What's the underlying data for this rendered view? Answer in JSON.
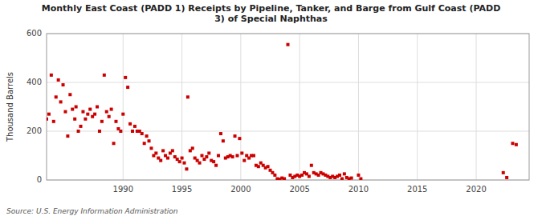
{
  "chart_data": {
    "type": "scatter",
    "title": "Monthly East Coast (PADD 1) Receipts by Pipeline, Tanker, and Barge from Gulf Coast (PADD\n3) of Special Naphthas",
    "y_label": "Thousand Barrels",
    "source": "Source: U.S. Energy Information Administration",
    "color": "#cc0000",
    "marker": "square",
    "grid": true,
    "xlim": [
      1983.5,
      2024.5
    ],
    "ylim": [
      0,
      600
    ],
    "xticks": [
      1990,
      1995,
      2000,
      2005,
      2010,
      2015,
      2020
    ],
    "yticks": [
      0,
      200,
      400,
      600
    ],
    "x": [
      1983.5,
      1983.7,
      1983.9,
      1984.1,
      1984.3,
      1984.5,
      1984.7,
      1984.9,
      1985.1,
      1985.3,
      1985.5,
      1985.7,
      1985.9,
      1986.0,
      1986.2,
      1986.4,
      1986.6,
      1986.8,
      1987.0,
      1987.2,
      1987.4,
      1987.6,
      1987.8,
      1988.0,
      1988.2,
      1988.4,
      1988.6,
      1988.8,
      1989.0,
      1989.2,
      1989.4,
      1989.6,
      1989.8,
      1990.0,
      1990.2,
      1990.4,
      1990.6,
      1990.8,
      1991.0,
      1991.2,
      1991.4,
      1991.6,
      1991.8,
      1992.0,
      1992.2,
      1992.4,
      1992.6,
      1992.8,
      1993.0,
      1993.2,
      1993.4,
      1993.6,
      1993.8,
      1994.0,
      1994.2,
      1994.4,
      1994.6,
      1994.8,
      1995.0,
      1995.2,
      1995.4,
      1995.5,
      1995.7,
      1995.9,
      1996.1,
      1996.3,
      1996.5,
      1996.7,
      1996.9,
      1997.1,
      1997.3,
      1997.5,
      1997.7,
      1997.9,
      1998.1,
      1998.3,
      1998.5,
      1998.7,
      1998.9,
      1999.1,
      1999.3,
      1999.5,
      1999.7,
      1999.9,
      2000.1,
      2000.3,
      2000.5,
      2000.7,
      2000.9,
      2001.1,
      2001.3,
      2001.5,
      2001.7,
      2001.9,
      2002.1,
      2002.3,
      2002.5,
      2002.7,
      2002.9,
      2003.1,
      2003.3,
      2003.5,
      2003.7,
      2004.0,
      2004.2,
      2004.4,
      2004.6,
      2004.8,
      2005.0,
      2005.2,
      2005.4,
      2005.6,
      2005.8,
      2006.0,
      2006.2,
      2006.4,
      2006.6,
      2006.8,
      2007.0,
      2007.2,
      2007.4,
      2007.6,
      2007.8,
      2008.0,
      2008.2,
      2008.4,
      2008.6,
      2008.8,
      2009.0,
      2009.2,
      2009.4,
      2010.0,
      2010.2,
      2022.3,
      2022.6,
      2023.1,
      2023.4
    ],
    "values": [
      250,
      270,
      430,
      240,
      340,
      410,
      320,
      390,
      280,
      180,
      350,
      290,
      250,
      300,
      200,
      220,
      280,
      250,
      270,
      290,
      260,
      270,
      300,
      200,
      240,
      430,
      280,
      260,
      290,
      150,
      240,
      210,
      200,
      270,
      420,
      380,
      230,
      200,
      220,
      200,
      200,
      190,
      150,
      180,
      160,
      130,
      100,
      110,
      90,
      80,
      120,
      100,
      90,
      110,
      120,
      95,
      85,
      75,
      90,
      70,
      45,
      340,
      120,
      130,
      90,
      80,
      70,
      100,
      85,
      95,
      110,
      80,
      75,
      60,
      100,
      190,
      160,
      90,
      95,
      100,
      95,
      180,
      100,
      170,
      110,
      80,
      100,
      90,
      100,
      100,
      60,
      55,
      70,
      60,
      50,
      55,
      40,
      30,
      20,
      5,
      3,
      8,
      5,
      555,
      20,
      10,
      15,
      20,
      15,
      20,
      30,
      25,
      15,
      60,
      30,
      25,
      20,
      30,
      25,
      20,
      15,
      10,
      15,
      10,
      15,
      20,
      5,
      25,
      10,
      5,
      8,
      20,
      5,
      30,
      10,
      150,
      145
    ]
  }
}
